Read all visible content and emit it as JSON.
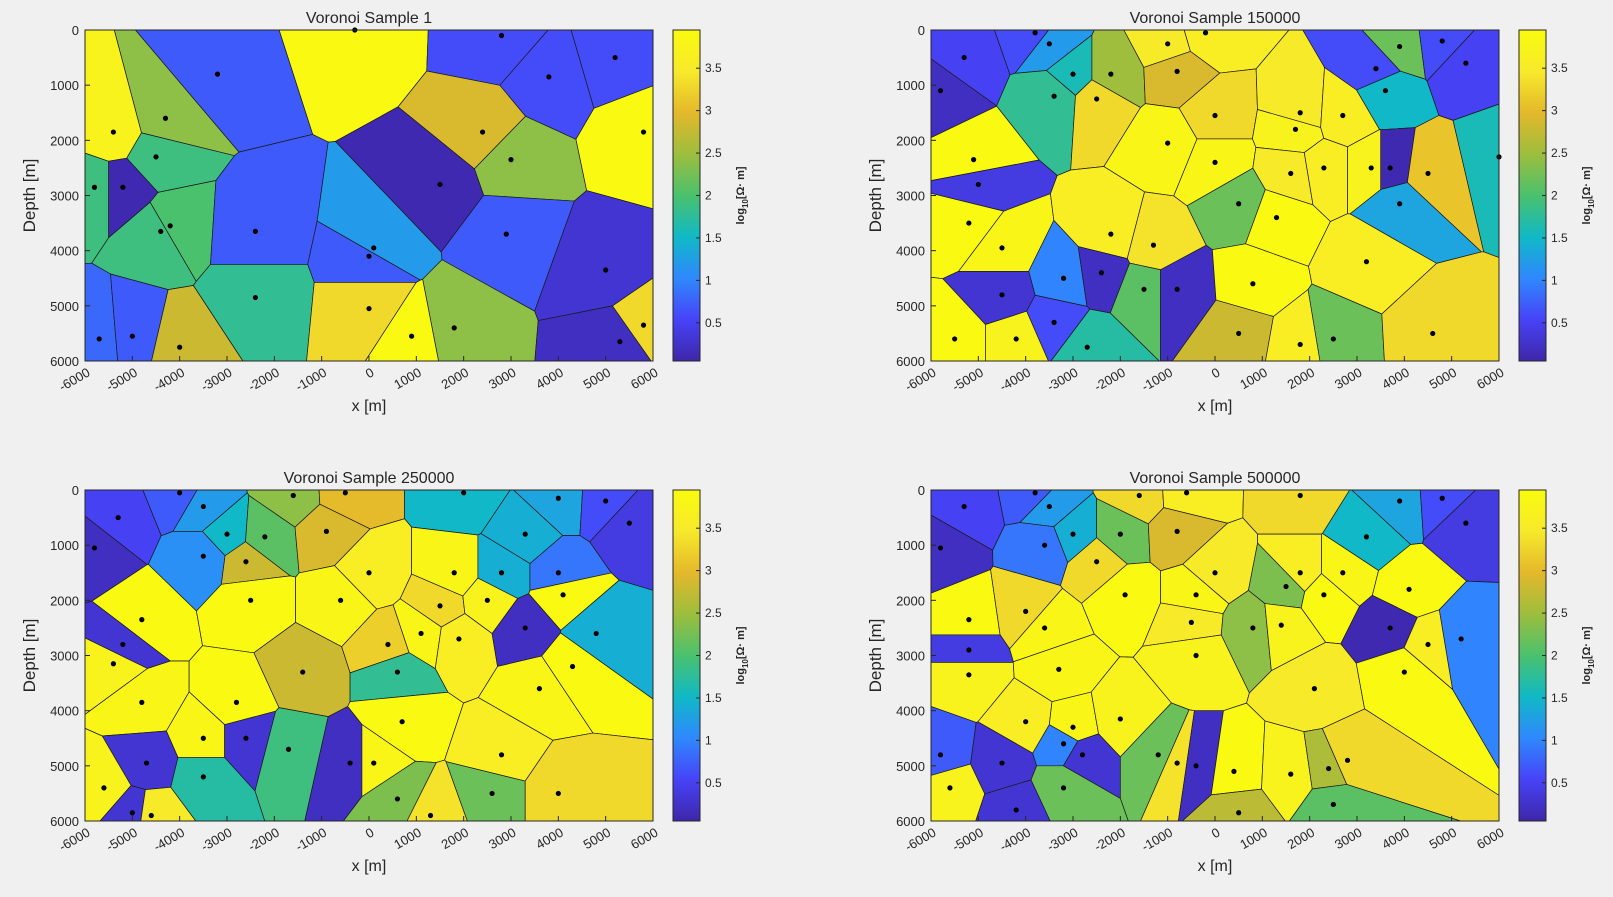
{
  "colorbar": {
    "label_main": "log",
    "label_sub": "10",
    "label_unit": "[Ω· m]",
    "ticks": [
      0.5,
      1,
      1.5,
      2,
      2.5,
      3,
      3.5
    ],
    "range": [
      0.05,
      3.95
    ],
    "colormap": [
      "#3e26a8",
      "#4743f8",
      "#2f88fe",
      "#10b9c6",
      "#4ac16d",
      "#9dbe3d",
      "#e4b82b",
      "#f7e92b",
      "#f9fb0e"
    ]
  },
  "chart_data": [
    {
      "type": "voronoi",
      "title": "Voronoi Sample 1",
      "xlabel": "x [m]",
      "ylabel": "Depth [m]",
      "xlim": [
        -6000,
        6000
      ],
      "ylim": [
        0,
        6000
      ],
      "y_reversed": true,
      "xticks": [
        -6000,
        -5000,
        -4000,
        -3000,
        -2000,
        -1000,
        0,
        1000,
        2000,
        3000,
        4000,
        5000,
        6000
      ],
      "yticks": [
        0,
        1000,
        2000,
        3000,
        4000,
        5000,
        6000
      ],
      "nuclei": [
        {
          "x": -300,
          "y": 0,
          "v": 3.9
        },
        {
          "x": 2800,
          "y": 100,
          "v": 0.6
        },
        {
          "x": -3200,
          "y": 800,
          "v": 0.7
        },
        {
          "x": 3800,
          "y": 850,
          "v": 0.6
        },
        {
          "x": 5200,
          "y": 500,
          "v": 0.6
        },
        {
          "x": -4300,
          "y": 1600,
          "v": 2.4
        },
        {
          "x": -5400,
          "y": 1850,
          "v": 3.7
        },
        {
          "x": 2400,
          "y": 1850,
          "v": 2.9
        },
        {
          "x": 5800,
          "y": 1850,
          "v": 3.9
        },
        {
          "x": -4500,
          "y": 2300,
          "v": 1.9
        },
        {
          "x": 3000,
          "y": 2350,
          "v": 2.4
        },
        {
          "x": 1500,
          "y": 2800,
          "v": 0.1
        },
        {
          "x": -5800,
          "y": 2850,
          "v": 1.9
        },
        {
          "x": -5200,
          "y": 2850,
          "v": 0.1
        },
        {
          "x": -4200,
          "y": 3550,
          "v": 2.0
        },
        {
          "x": -4400,
          "y": 3650,
          "v": 1.9
        },
        {
          "x": -2400,
          "y": 3650,
          "v": 0.7
        },
        {
          "x": 2900,
          "y": 3700,
          "v": 0.7
        },
        {
          "x": 100,
          "y": 3950,
          "v": 1.2
        },
        {
          "x": 0,
          "y": 4100,
          "v": 0.7
        },
        {
          "x": 5000,
          "y": 4350,
          "v": 0.3
        },
        {
          "x": -2400,
          "y": 4850,
          "v": 1.8
        },
        {
          "x": 0,
          "y": 5050,
          "v": 3.3
        },
        {
          "x": 1800,
          "y": 5400,
          "v": 2.4
        },
        {
          "x": 5800,
          "y": 5350,
          "v": 3.3
        },
        {
          "x": -5700,
          "y": 5600,
          "v": 0.8
        },
        {
          "x": -5000,
          "y": 5550,
          "v": 0.7
        },
        {
          "x": -4000,
          "y": 5750,
          "v": 2.8
        },
        {
          "x": 900,
          "y": 5550,
          "v": 3.9
        },
        {
          "x": 5300,
          "y": 5650,
          "v": 0.2
        }
      ]
    },
    {
      "type": "voronoi",
      "title": "Voronoi Sample 150000",
      "xlabel": "x [m]",
      "ylabel": "Depth [m]",
      "xlim": [
        -6000,
        6000
      ],
      "ylim": [
        0,
        6000
      ],
      "y_reversed": true,
      "xticks": [
        -6000,
        -5000,
        -4000,
        -3000,
        -2000,
        -1000,
        0,
        1000,
        2000,
        3000,
        4000,
        5000,
        6000
      ],
      "yticks": [
        0,
        1000,
        2000,
        3000,
        4000,
        5000,
        6000
      ],
      "nuclei": [
        {
          "x": -3800,
          "y": 50,
          "v": 0.6
        },
        {
          "x": -3500,
          "y": 250,
          "v": 1.2
        },
        {
          "x": -1000,
          "y": 250,
          "v": 3.5
        },
        {
          "x": -200,
          "y": 50,
          "v": 3.6
        },
        {
          "x": -5300,
          "y": 500,
          "v": 0.5
        },
        {
          "x": -3000,
          "y": 800,
          "v": 1.6
        },
        {
          "x": -2200,
          "y": 800,
          "v": 2.5
        },
        {
          "x": -800,
          "y": 750,
          "v": 2.9
        },
        {
          "x": 3400,
          "y": 700,
          "v": 0.6
        },
        {
          "x": 3900,
          "y": 300,
          "v": 2.2
        },
        {
          "x": 4800,
          "y": 200,
          "v": 0.6
        },
        {
          "x": 5300,
          "y": 600,
          "v": 0.5
        },
        {
          "x": -5800,
          "y": 1100,
          "v": 0.2
        },
        {
          "x": -3400,
          "y": 1200,
          "v": 1.8
        },
        {
          "x": -2500,
          "y": 1250,
          "v": 3.3
        },
        {
          "x": 3600,
          "y": 1100,
          "v": 1.5
        },
        {
          "x": 0,
          "y": 1550,
          "v": 3.3
        },
        {
          "x": 1800,
          "y": 1500,
          "v": 3.5
        },
        {
          "x": 2700,
          "y": 1550,
          "v": 3.6
        },
        {
          "x": -5100,
          "y": 2350,
          "v": 3.9
        },
        {
          "x": -1000,
          "y": 2050,
          "v": 3.8
        },
        {
          "x": 1700,
          "y": 1800,
          "v": 3.7
        },
        {
          "x": 3700,
          "y": 2500,
          "v": 0.1
        },
        {
          "x": 4500,
          "y": 2600,
          "v": 3.1
        },
        {
          "x": 6000,
          "y": 2300,
          "v": 1.6
        },
        {
          "x": -5000,
          "y": 2800,
          "v": 0.4
        },
        {
          "x": 0,
          "y": 2400,
          "v": 3.8
        },
        {
          "x": 1600,
          "y": 2600,
          "v": 3.5
        },
        {
          "x": 2300,
          "y": 2500,
          "v": 3.6
        },
        {
          "x": 3300,
          "y": 2500,
          "v": 3.7
        },
        {
          "x": 500,
          "y": 3150,
          "v": 2.2
        },
        {
          "x": 1300,
          "y": 3400,
          "v": 3.9
        },
        {
          "x": 3900,
          "y": 3150,
          "v": 1.3
        },
        {
          "x": -5200,
          "y": 3500,
          "v": 3.9
        },
        {
          "x": -4500,
          "y": 3950,
          "v": 3.8
        },
        {
          "x": -2200,
          "y": 3700,
          "v": 3.6
        },
        {
          "x": -1300,
          "y": 3900,
          "v": 3.4
        },
        {
          "x": 3200,
          "y": 4200,
          "v": 3.6
        },
        {
          "x": -3200,
          "y": 4500,
          "v": 1.0
        },
        {
          "x": -2400,
          "y": 4400,
          "v": 0.2
        },
        {
          "x": -1500,
          "y": 4700,
          "v": 2.1
        },
        {
          "x": -800,
          "y": 4700,
          "v": 0.2
        },
        {
          "x": 800,
          "y": 4600,
          "v": 3.9
        },
        {
          "x": -4500,
          "y": 4800,
          "v": 0.3
        },
        {
          "x": -3400,
          "y": 5300,
          "v": 0.6
        },
        {
          "x": -5500,
          "y": 5600,
          "v": 3.9
        },
        {
          "x": -4200,
          "y": 5600,
          "v": 3.7
        },
        {
          "x": -2700,
          "y": 5750,
          "v": 1.7
        },
        {
          "x": 500,
          "y": 5500,
          "v": 2.8
        },
        {
          "x": 1800,
          "y": 5700,
          "v": 3.6
        },
        {
          "x": 2500,
          "y": 5600,
          "v": 2.2
        },
        {
          "x": 4600,
          "y": 5500,
          "v": 3.3
        }
      ]
    },
    {
      "type": "voronoi",
      "title": "Voronoi Sample 250000",
      "xlabel": "x [m]",
      "ylabel": "Depth [m]",
      "xlim": [
        -6000,
        6000
      ],
      "ylim": [
        0,
        6000
      ],
      "y_reversed": true,
      "xticks": [
        -6000,
        -5000,
        -4000,
        -3000,
        -2000,
        -1000,
        0,
        1000,
        2000,
        3000,
        4000,
        5000,
        6000
      ],
      "yticks": [
        0,
        1000,
        2000,
        3000,
        4000,
        5000,
        6000
      ],
      "nuclei": [
        {
          "x": -4000,
          "y": 50,
          "v": 0.7
        },
        {
          "x": -3500,
          "y": 300,
          "v": 1.2
        },
        {
          "x": -1600,
          "y": 100,
          "v": 2.4
        },
        {
          "x": -500,
          "y": 50,
          "v": 3.0
        },
        {
          "x": 2000,
          "y": 50,
          "v": 1.5
        },
        {
          "x": 4000,
          "y": 150,
          "v": 1.3
        },
        {
          "x": 5000,
          "y": 200,
          "v": 0.6
        },
        {
          "x": -5300,
          "y": 500,
          "v": 0.5
        },
        {
          "x": -3000,
          "y": 800,
          "v": 1.5
        },
        {
          "x": -2200,
          "y": 850,
          "v": 2.1
        },
        {
          "x": -900,
          "y": 750,
          "v": 2.9
        },
        {
          "x": 3300,
          "y": 800,
          "v": 1.4
        },
        {
          "x": 5500,
          "y": 600,
          "v": 0.4
        },
        {
          "x": -5800,
          "y": 1050,
          "v": 0.2
        },
        {
          "x": -3500,
          "y": 1200,
          "v": 1.1
        },
        {
          "x": -2600,
          "y": 1300,
          "v": 2.8
        },
        {
          "x": 0,
          "y": 1500,
          "v": 3.6
        },
        {
          "x": 1800,
          "y": 1500,
          "v": 3.8
        },
        {
          "x": 2800,
          "y": 1500,
          "v": 1.4
        },
        {
          "x": 4000,
          "y": 1500,
          "v": 0.9
        },
        {
          "x": -4800,
          "y": 2350,
          "v": 3.9
        },
        {
          "x": -2500,
          "y": 2000,
          "v": 3.9
        },
        {
          "x": -600,
          "y": 2000,
          "v": 3.8
        },
        {
          "x": 1500,
          "y": 2100,
          "v": 3.3
        },
        {
          "x": 2500,
          "y": 2000,
          "v": 3.7
        },
        {
          "x": 4100,
          "y": 1900,
          "v": 3.9
        },
        {
          "x": -5200,
          "y": 2800,
          "v": 0.3
        },
        {
          "x": 400,
          "y": 2800,
          "v": 3.2
        },
        {
          "x": 1100,
          "y": 2600,
          "v": 3.8
        },
        {
          "x": 1900,
          "y": 2700,
          "v": 3.6
        },
        {
          "x": 3300,
          "y": 2500,
          "v": 0.2
        },
        {
          "x": 4800,
          "y": 2600,
          "v": 1.4
        },
        {
          "x": -5400,
          "y": 3150,
          "v": 3.7
        },
        {
          "x": -1400,
          "y": 3300,
          "v": 2.8
        },
        {
          "x": 4300,
          "y": 3200,
          "v": 3.9
        },
        {
          "x": -4800,
          "y": 3850,
          "v": 3.8
        },
        {
          "x": -2800,
          "y": 3850,
          "v": 3.9
        },
        {
          "x": 600,
          "y": 3300,
          "v": 1.8
        },
        {
          "x": 3600,
          "y": 3600,
          "v": 3.8
        },
        {
          "x": -3500,
          "y": 4500,
          "v": 3.8
        },
        {
          "x": -2600,
          "y": 4500,
          "v": 0.3
        },
        {
          "x": -1700,
          "y": 4700,
          "v": 1.9
        },
        {
          "x": 700,
          "y": 4200,
          "v": 3.9
        },
        {
          "x": 2800,
          "y": 4800,
          "v": 3.6
        },
        {
          "x": -4700,
          "y": 4950,
          "v": 0.3
        },
        {
          "x": -400,
          "y": 4950,
          "v": 0.2
        },
        {
          "x": 100,
          "y": 4950,
          "v": 3.8
        },
        {
          "x": -3500,
          "y": 5200,
          "v": 1.7
        },
        {
          "x": -5600,
          "y": 5400,
          "v": 3.7
        },
        {
          "x": 2600,
          "y": 5500,
          "v": 2.2
        },
        {
          "x": 4000,
          "y": 5500,
          "v": 3.3
        },
        {
          "x": 600,
          "y": 5600,
          "v": 2.3
        },
        {
          "x": 1300,
          "y": 5900,
          "v": 3.4
        },
        {
          "x": -5000,
          "y": 5850,
          "v": 0.3
        },
        {
          "x": -4600,
          "y": 5900,
          "v": 3.5
        }
      ]
    },
    {
      "type": "voronoi",
      "title": "Voronoi Sample 500000",
      "xlabel": "x [m]",
      "ylabel": "Depth [m]",
      "xlim": [
        -6000,
        6000
      ],
      "ylim": [
        0,
        6000
      ],
      "y_reversed": true,
      "xticks": [
        -6000,
        -5000,
        -4000,
        -3000,
        -2000,
        -1000,
        0,
        1000,
        2000,
        3000,
        4000,
        5000,
        6000
      ],
      "yticks": [
        0,
        1000,
        2000,
        3000,
        4000,
        5000,
        6000
      ],
      "nuclei": [
        {
          "x": -3800,
          "y": 50,
          "v": 0.7
        },
        {
          "x": -3500,
          "y": 300,
          "v": 1.2
        },
        {
          "x": -1600,
          "y": 100,
          "v": 3.3
        },
        {
          "x": -600,
          "y": 50,
          "v": 3.6
        },
        {
          "x": 1800,
          "y": 100,
          "v": 3.3
        },
        {
          "x": 3900,
          "y": 200,
          "v": 1.3
        },
        {
          "x": 4800,
          "y": 150,
          "v": 0.6
        },
        {
          "x": -5300,
          "y": 300,
          "v": 0.5
        },
        {
          "x": -3000,
          "y": 800,
          "v": 1.4
        },
        {
          "x": -2000,
          "y": 800,
          "v": 2.2
        },
        {
          "x": -800,
          "y": 750,
          "v": 2.9
        },
        {
          "x": 3200,
          "y": 850,
          "v": 1.5
        },
        {
          "x": 5300,
          "y": 600,
          "v": 0.4
        },
        {
          "x": -5800,
          "y": 1050,
          "v": 0.2
        },
        {
          "x": -3600,
          "y": 1000,
          "v": 0.9
        },
        {
          "x": -2500,
          "y": 1300,
          "v": 3.3
        },
        {
          "x": 0,
          "y": 1500,
          "v": 3.5
        },
        {
          "x": 1800,
          "y": 1500,
          "v": 3.6
        },
        {
          "x": 2700,
          "y": 1500,
          "v": 3.8
        },
        {
          "x": -5200,
          "y": 2350,
          "v": 3.9
        },
        {
          "x": -4000,
          "y": 2200,
          "v": 3.3
        },
        {
          "x": -1900,
          "y": 1900,
          "v": 3.9
        },
        {
          "x": -400,
          "y": 1900,
          "v": 3.8
        },
        {
          "x": 1500,
          "y": 1750,
          "v": 2.3
        },
        {
          "x": 2300,
          "y": 1900,
          "v": 3.9
        },
        {
          "x": 3700,
          "y": 2500,
          "v": 0.1
        },
        {
          "x": 4100,
          "y": 1800,
          "v": 3.9
        },
        {
          "x": 5200,
          "y": 2700,
          "v": 1.0
        },
        {
          "x": -5200,
          "y": 2900,
          "v": 0.4
        },
        {
          "x": -3600,
          "y": 2500,
          "v": 3.8
        },
        {
          "x": -500,
          "y": 2400,
          "v": 3.5
        },
        {
          "x": 800,
          "y": 2500,
          "v": 2.4
        },
        {
          "x": 1400,
          "y": 2450,
          "v": 3.7
        },
        {
          "x": 4500,
          "y": 2800,
          "v": 3.6
        },
        {
          "x": -5200,
          "y": 3350,
          "v": 3.7
        },
        {
          "x": -3300,
          "y": 3250,
          "v": 3.8
        },
        {
          "x": -400,
          "y": 3000,
          "v": 3.7
        },
        {
          "x": 2100,
          "y": 3600,
          "v": 3.5
        },
        {
          "x": 4000,
          "y": 3300,
          "v": 3.9
        },
        {
          "x": -5800,
          "y": 4800,
          "v": 0.7
        },
        {
          "x": -4000,
          "y": 4200,
          "v": 3.6
        },
        {
          "x": -3000,
          "y": 4300,
          "v": 3.8
        },
        {
          "x": -2000,
          "y": 4150,
          "v": 3.7
        },
        {
          "x": -4500,
          "y": 4950,
          "v": 0.3
        },
        {
          "x": -3200,
          "y": 4600,
          "v": 1.0
        },
        {
          "x": -2800,
          "y": 4800,
          "v": 0.3
        },
        {
          "x": -1200,
          "y": 4800,
          "v": 2.2
        },
        {
          "x": -800,
          "y": 4950,
          "v": 3.4
        },
        {
          "x": -400,
          "y": 5000,
          "v": 0.2
        },
        {
          "x": 400,
          "y": 5100,
          "v": 3.9
        },
        {
          "x": 1600,
          "y": 5150,
          "v": 3.7
        },
        {
          "x": 2400,
          "y": 5050,
          "v": 2.6
        },
        {
          "x": 2800,
          "y": 4900,
          "v": 3.3
        },
        {
          "x": -5600,
          "y": 5400,
          "v": 3.7
        },
        {
          "x": -3200,
          "y": 5400,
          "v": 2.2
        },
        {
          "x": -4200,
          "y": 5800,
          "v": 0.3
        },
        {
          "x": 500,
          "y": 5850,
          "v": 2.7
        },
        {
          "x": 2500,
          "y": 5700,
          "v": 2.1
        }
      ]
    }
  ]
}
